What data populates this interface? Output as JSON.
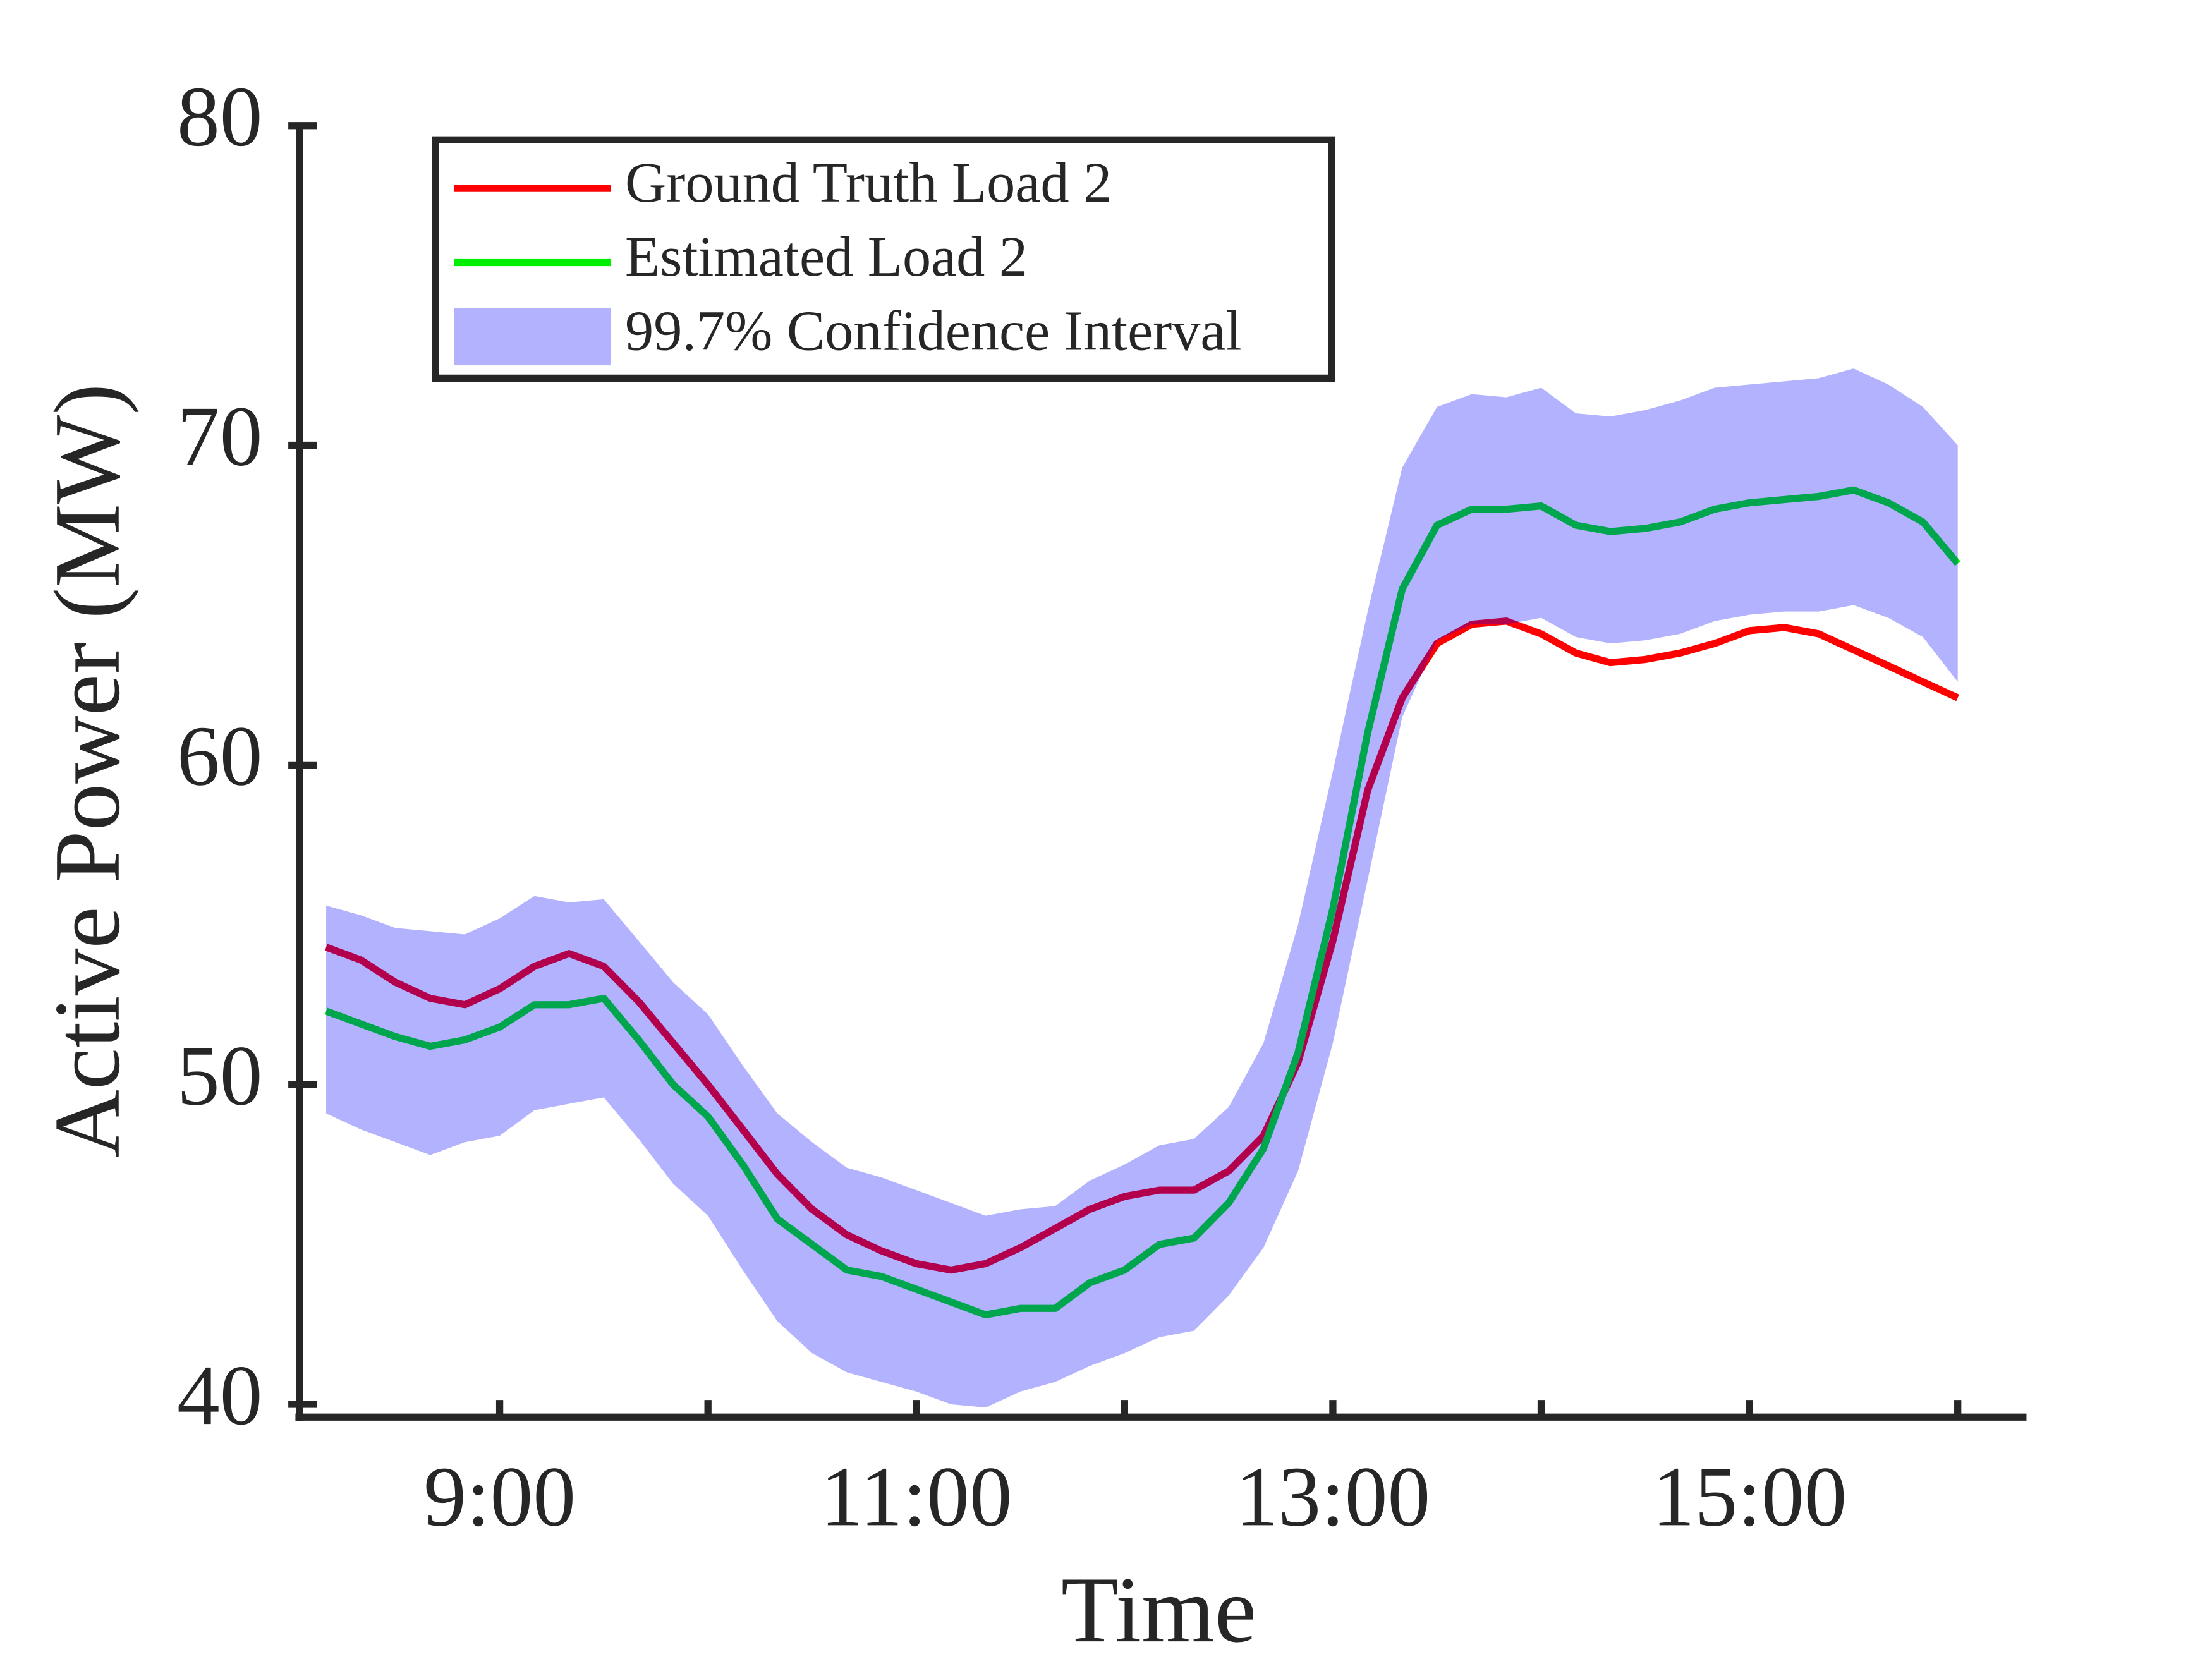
{
  "chart_data": {
    "type": "line",
    "xlabel": "Time",
    "ylabel": "Active Power (MW)",
    "x": [
      8.167,
      8.333,
      8.5,
      8.667,
      8.833,
      9,
      9.167,
      9.333,
      9.5,
      9.667,
      9.833,
      10,
      10.167,
      10.333,
      10.5,
      10.667,
      10.833,
      11,
      11.167,
      11.333,
      11.5,
      11.667,
      11.833,
      12,
      12.167,
      12.333,
      12.5,
      12.667,
      12.833,
      13,
      13.167,
      13.333,
      13.5,
      13.667,
      13.833,
      14,
      14.167,
      14.333,
      14.5,
      14.667,
      14.833,
      15,
      15.167,
      15.333,
      15.5,
      15.667,
      15.833,
      16
    ],
    "series": [
      {
        "name": "Ground Truth Load 2",
        "color": "#ff0000",
        "values": [
          54.3,
          53.9,
          53.2,
          52.7,
          52.5,
          53.0,
          53.7,
          54.1,
          53.7,
          52.6,
          51.3,
          50.0,
          48.6,
          47.2,
          46.1,
          45.3,
          44.8,
          44.4,
          44.2,
          44.4,
          44.9,
          45.5,
          46.1,
          46.5,
          46.7,
          46.7,
          47.3,
          48.4,
          50.7,
          54.5,
          59.2,
          62.1,
          63.8,
          64.4,
          64.5,
          64.1,
          63.5,
          63.2,
          63.3,
          63.5,
          63.8,
          64.2,
          64.3,
          64.1,
          63.6,
          63.1,
          62.6,
          62.1
        ]
      },
      {
        "name": "Estimated Load 2",
        "color": "#00ee00",
        "values": [
          52.3,
          51.9,
          51.5,
          51.2,
          51.4,
          51.8,
          52.5,
          52.5,
          52.7,
          51.4,
          50.0,
          49.0,
          47.5,
          45.8,
          45.0,
          44.2,
          44.0,
          43.6,
          43.2,
          42.8,
          43.0,
          43.0,
          43.8,
          44.2,
          45.0,
          45.2,
          46.3,
          48.0,
          51.0,
          55.5,
          61.0,
          65.5,
          67.5,
          68.0,
          68.0,
          68.1,
          67.5,
          67.3,
          67.4,
          67.6,
          68.0,
          68.2,
          68.3,
          68.4,
          68.6,
          68.2,
          67.6,
          66.3
        ]
      },
      {
        "name": "99.7% Confidence Interval",
        "color": "#0000ff",
        "opacity": 0.3,
        "type": "band",
        "upper": [
          55.6,
          55.3,
          54.9,
          54.8,
          54.7,
          55.2,
          55.9,
          55.7,
          55.8,
          54.5,
          53.2,
          52.2,
          50.6,
          49.1,
          48.2,
          47.4,
          47.1,
          46.7,
          46.3,
          45.9,
          46.1,
          46.2,
          47.0,
          47.5,
          48.1,
          48.3,
          49.3,
          51.3,
          55.0,
          59.8,
          64.8,
          69.3,
          71.2,
          71.6,
          71.5,
          71.8,
          71.0,
          70.9,
          71.1,
          71.4,
          71.8,
          71.9,
          72.0,
          72.1,
          72.4,
          71.9,
          71.2,
          70.0
        ],
        "lower": [
          49.1,
          48.6,
          48.2,
          47.8,
          48.2,
          48.4,
          49.2,
          49.4,
          49.6,
          48.3,
          46.9,
          45.9,
          44.2,
          42.6,
          41.6,
          41.0,
          40.7,
          40.4,
          40.0,
          39.9,
          40.4,
          40.7,
          41.2,
          41.6,
          42.1,
          42.3,
          43.4,
          44.9,
          47.3,
          51.3,
          56.4,
          61.5,
          63.9,
          64.4,
          64.4,
          64.6,
          64.0,
          63.8,
          63.9,
          64.1,
          64.5,
          64.7,
          64.8,
          64.8,
          65.0,
          64.6,
          64.0,
          62.6
        ]
      }
    ],
    "xlim": [
      8.04,
      16.33
    ],
    "xticks": [
      {
        "value": 9,
        "label": "9:00"
      },
      {
        "value": 11,
        "label": "11:00"
      },
      {
        "value": 13,
        "label": "13:00"
      },
      {
        "value": 15,
        "label": "15:00"
      }
    ],
    "xminor_ticks": [
      10,
      12,
      14,
      16
    ],
    "ylim": [
      39.6,
      80
    ],
    "yticks": [
      40,
      50,
      60,
      70,
      80
    ],
    "grid": false,
    "legend": "upper left"
  }
}
